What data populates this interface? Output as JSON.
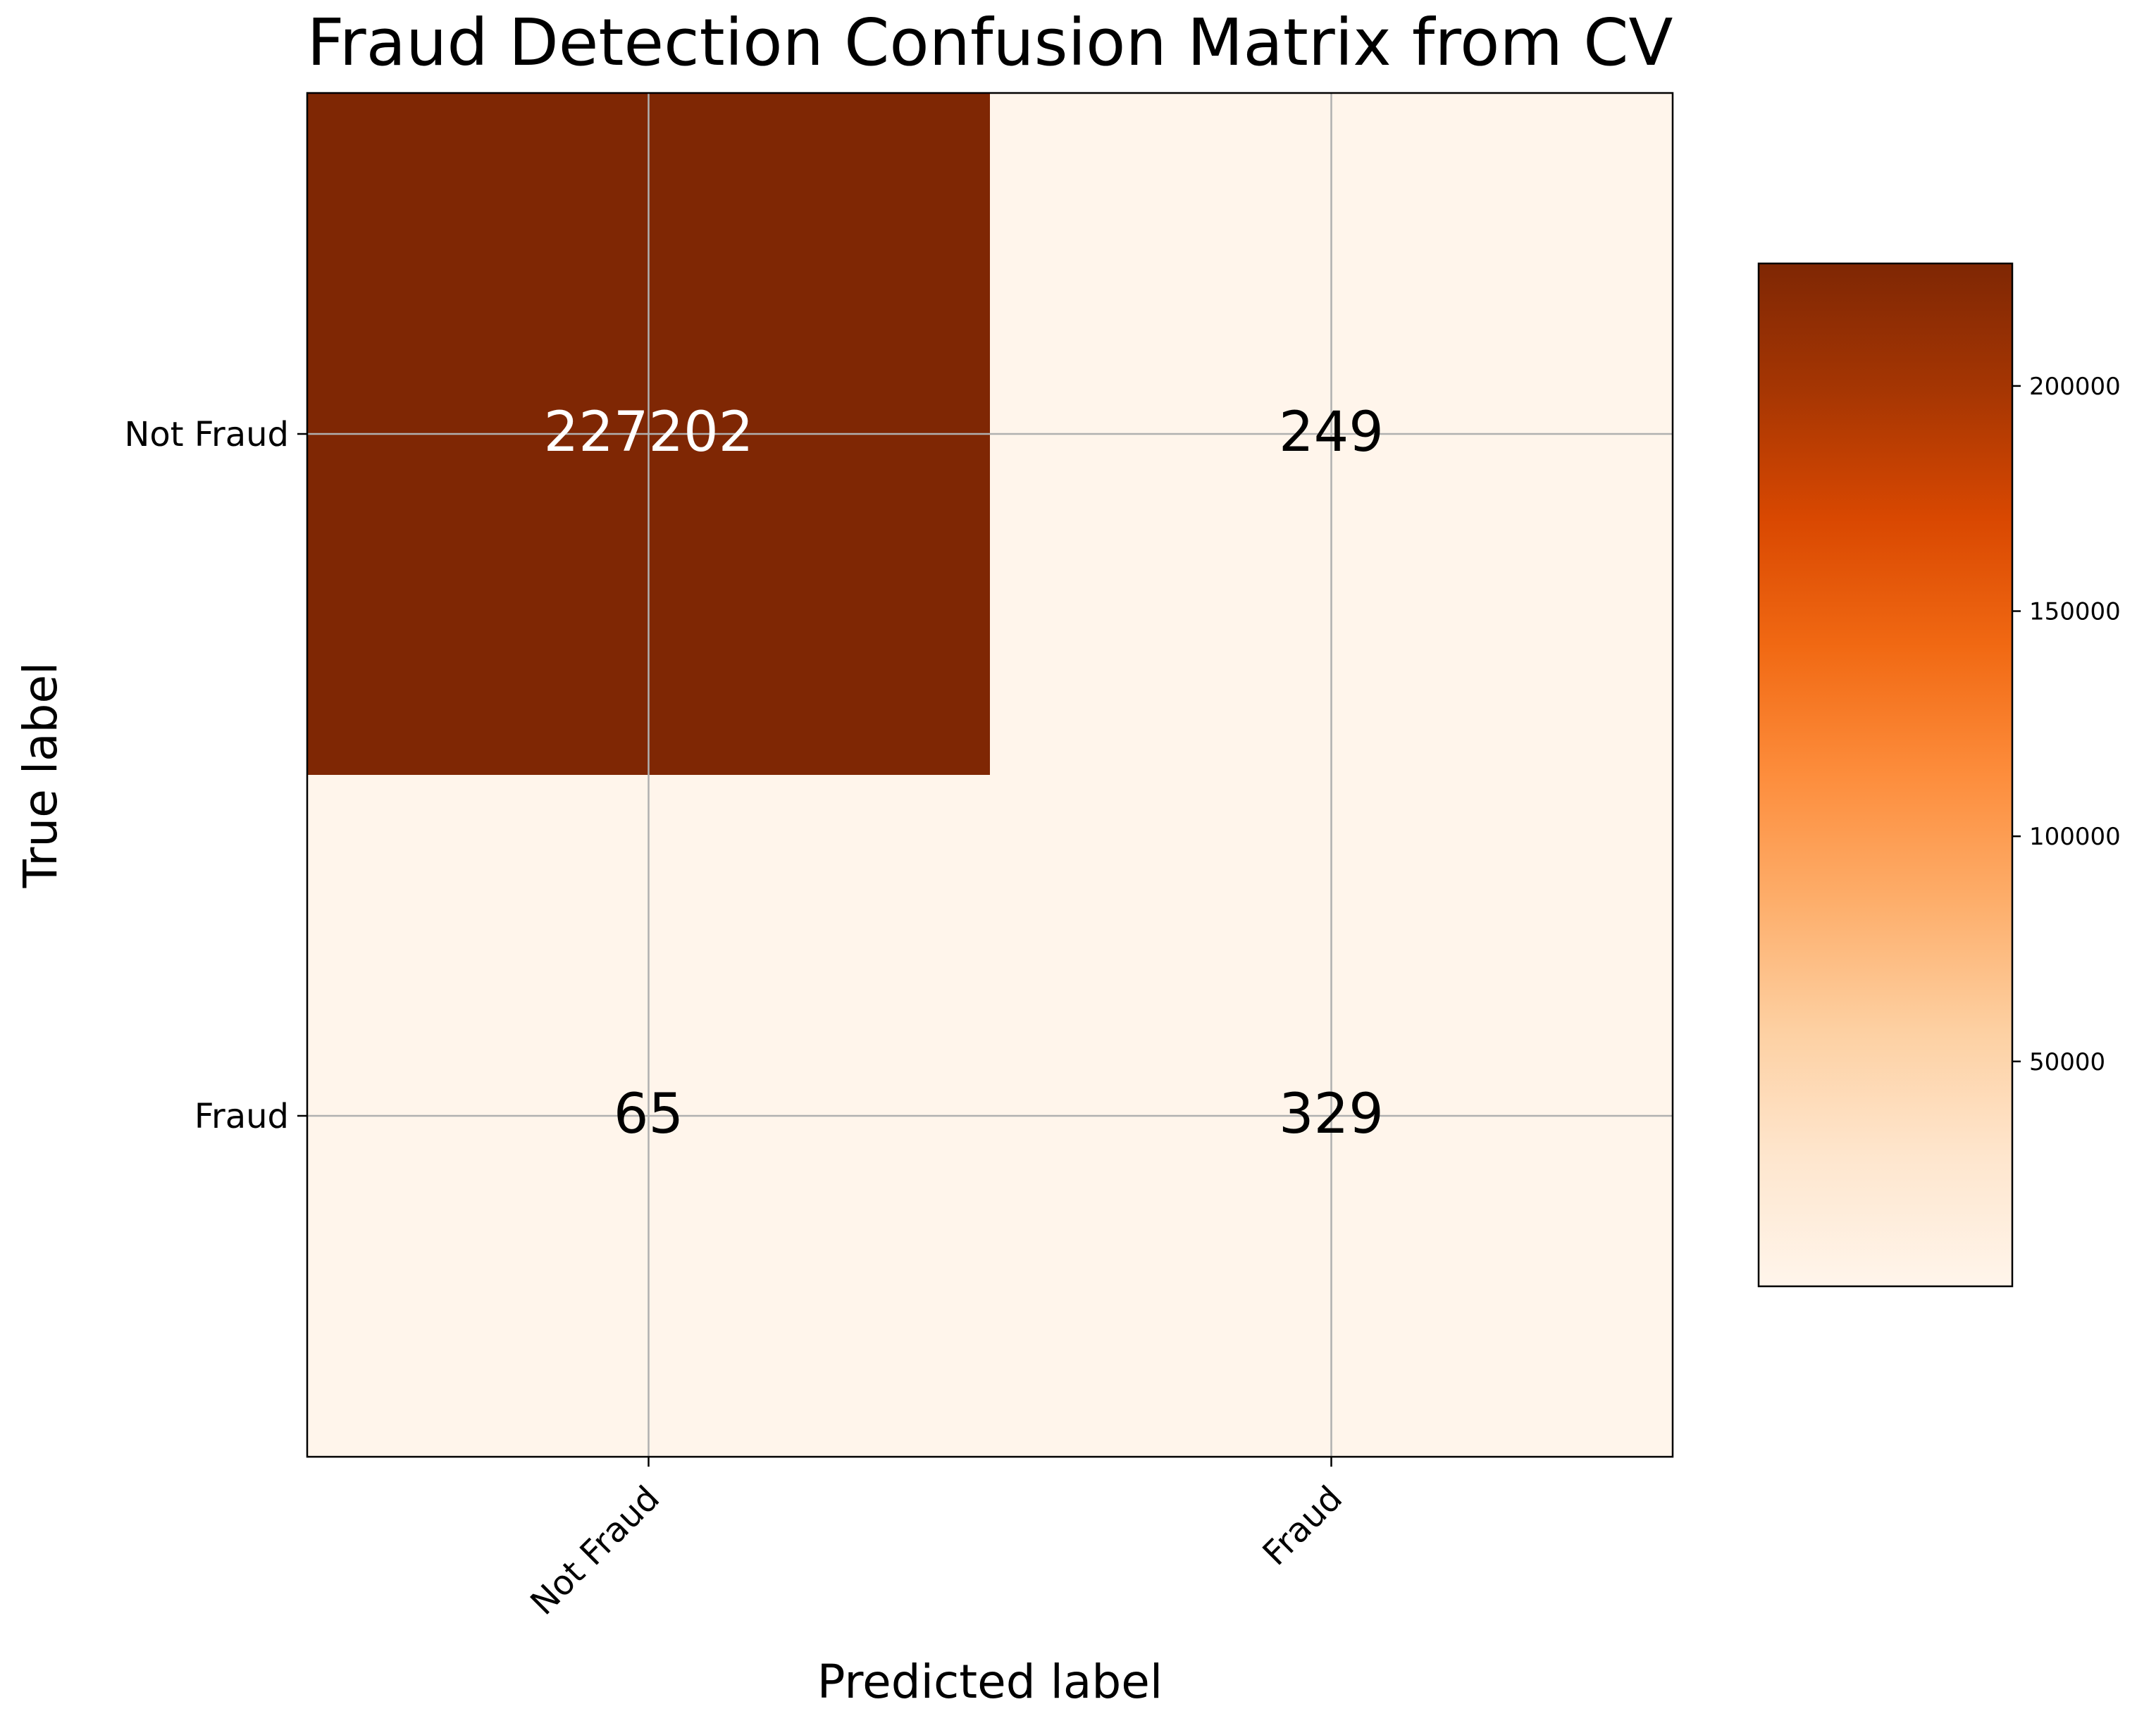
{
  "chart_data": {
    "type": "heatmap",
    "title": "Fraud Detection Confusion Matrix from CV",
    "xlabel": "Predicted label",
    "ylabel": "True label",
    "x_categories": [
      "Not Fraud",
      "Fraud"
    ],
    "y_categories": [
      "Not Fraud",
      "Fraud"
    ],
    "matrix": [
      [
        227202,
        249
      ],
      [
        65,
        329
      ]
    ],
    "matrix_labels": [
      [
        "227202",
        "249"
      ],
      [
        "65",
        "329"
      ]
    ],
    "colormap": "Oranges",
    "color_range": [
      65,
      227202
    ],
    "colorbar_ticks": [
      50000,
      100000,
      150000,
      200000
    ],
    "colorbar_tick_labels": [
      "50000",
      "100000",
      "150000",
      "200000"
    ],
    "grid": true,
    "colors": {
      "high": "#7f2704",
      "low": "#fff5eb",
      "text_on_dark": "#ffffff",
      "text_on_light": "#000000",
      "grid": "#b0b0b0"
    }
  }
}
